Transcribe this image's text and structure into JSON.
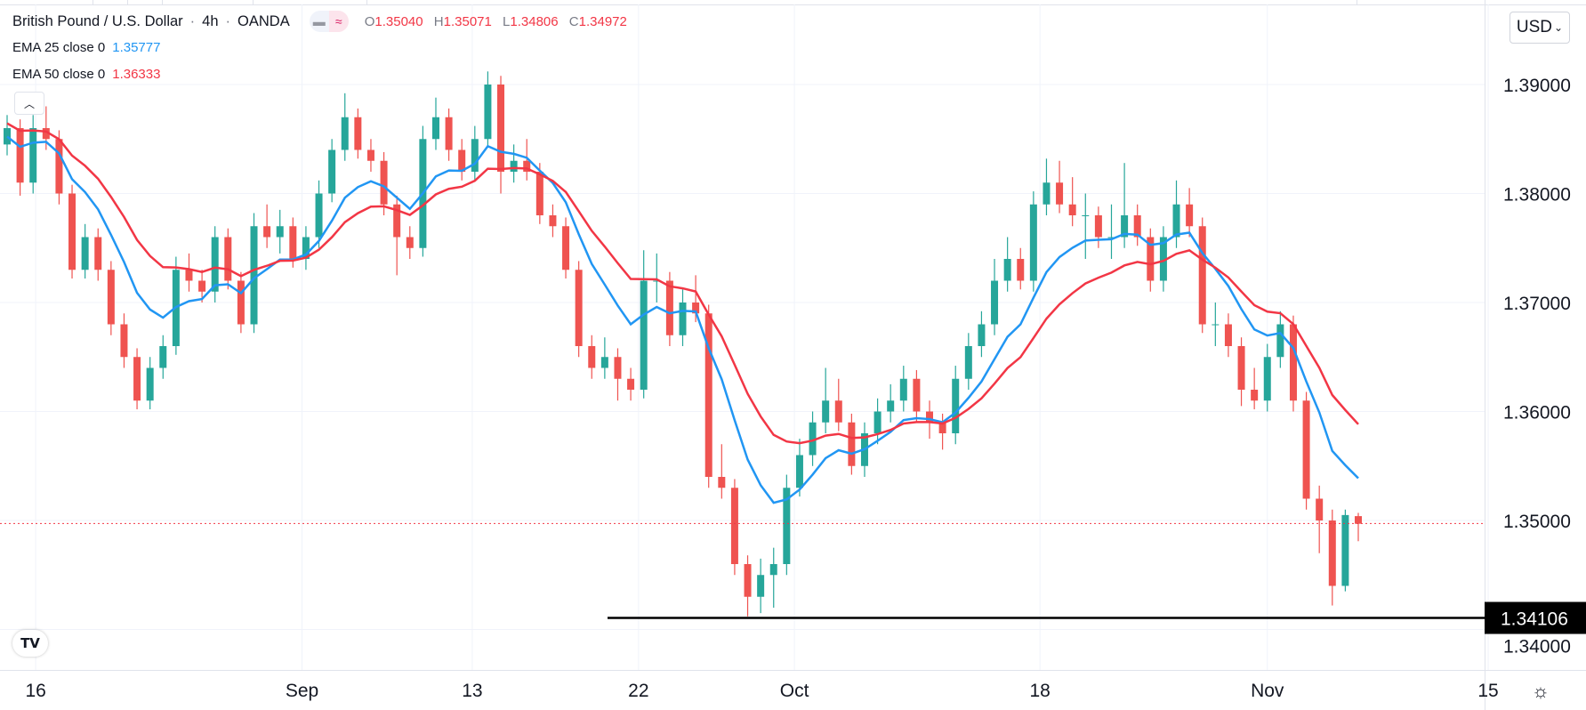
{
  "header": {
    "symbol": "British Pound / U.S. Dollar",
    "interval": "4h",
    "exchange": "OANDA",
    "separator": "·",
    "ohlc": {
      "o_label": "O",
      "o": "1.35040",
      "h_label": "H",
      "h": "1.35071",
      "l_label": "L",
      "l": "1.34806",
      "c_label": "C",
      "c": "1.34972"
    }
  },
  "indicators": [
    {
      "label": "EMA 25 close 0",
      "value": "1.35777",
      "color": "#2196f3"
    },
    {
      "label": "EMA 50 close 0",
      "value": "1.36333",
      "color": "#f23645"
    }
  ],
  "currency_button": "USD",
  "collapse_icon": "chevron-up-icon",
  "logo_text": "TV",
  "colors": {
    "up": "#26a69a",
    "down": "#ef5350",
    "grid": "#f0f3fa",
    "hline": "#000000",
    "last_price": "#f23645"
  },
  "chart_data": {
    "type": "candlestick",
    "title": "British Pound / U.S. Dollar · 4h · OANDA",
    "ylim": [
      1.3345,
      1.3942
    ],
    "y_ticks": [
      "1.39000",
      "1.38000",
      "1.37000",
      "1.36000",
      "1.35000",
      "1.34000"
    ],
    "y_tick_values": [
      1.39,
      1.38,
      1.37,
      1.36,
      1.35,
      1.34
    ],
    "x_ticks": [
      "16",
      "Sep",
      "13",
      "22",
      "Oct",
      "18",
      "Nov",
      "15"
    ],
    "x_tick_bar_index": [
      2.2,
      22.7,
      35.8,
      48.6,
      60.6,
      79.5,
      97,
      114
    ],
    "horizontal_line": {
      "value": 1.34106,
      "label": "1.34106"
    },
    "last_price": 1.34972,
    "ema_periods_display": [
      25,
      50
    ],
    "candles_ohlc": [
      [
        1.3845,
        1.3872,
        1.3835,
        1.386
      ],
      [
        1.386,
        1.3868,
        1.3798,
        1.381
      ],
      [
        1.381,
        1.3872,
        1.38,
        1.386
      ],
      [
        1.386,
        1.388,
        1.384,
        1.385
      ],
      [
        1.385,
        1.3858,
        1.379,
        1.38
      ],
      [
        1.38,
        1.3808,
        1.3722,
        1.373
      ],
      [
        1.373,
        1.3772,
        1.3722,
        1.376
      ],
      [
        1.376,
        1.3768,
        1.372,
        1.373
      ],
      [
        1.373,
        1.3738,
        1.367,
        1.368
      ],
      [
        1.368,
        1.369,
        1.364,
        1.365
      ],
      [
        1.365,
        1.3658,
        1.3602,
        1.361
      ],
      [
        1.361,
        1.365,
        1.3602,
        1.364
      ],
      [
        1.364,
        1.367,
        1.363,
        1.366
      ],
      [
        1.366,
        1.3742,
        1.3652,
        1.373
      ],
      [
        1.373,
        1.3745,
        1.371,
        1.372
      ],
      [
        1.372,
        1.373,
        1.37,
        1.371
      ],
      [
        1.371,
        1.377,
        1.37,
        1.376
      ],
      [
        1.376,
        1.3768,
        1.3712,
        1.372
      ],
      [
        1.372,
        1.3728,
        1.3672,
        1.368
      ],
      [
        1.368,
        1.3782,
        1.3672,
        1.377
      ],
      [
        1.377,
        1.379,
        1.375,
        1.376
      ],
      [
        1.376,
        1.3785,
        1.3745,
        1.377
      ],
      [
        1.377,
        1.3778,
        1.3732,
        1.374
      ],
      [
        1.374,
        1.377,
        1.373,
        1.376
      ],
      [
        1.376,
        1.3812,
        1.375,
        1.38
      ],
      [
        1.38,
        1.385,
        1.3792,
        1.384
      ],
      [
        1.384,
        1.3892,
        1.383,
        1.387
      ],
      [
        1.387,
        1.3878,
        1.3832,
        1.384
      ],
      [
        1.384,
        1.385,
        1.382,
        1.383
      ],
      [
        1.383,
        1.3838,
        1.378,
        1.379
      ],
      [
        1.379,
        1.3798,
        1.3725,
        1.376
      ],
      [
        1.376,
        1.377,
        1.374,
        1.375
      ],
      [
        1.375,
        1.3862,
        1.3742,
        1.385
      ],
      [
        1.385,
        1.3888,
        1.384,
        1.387
      ],
      [
        1.387,
        1.3878,
        1.383,
        1.384
      ],
      [
        1.384,
        1.385,
        1.3812,
        1.382
      ],
      [
        1.382,
        1.3862,
        1.3812,
        1.385
      ],
      [
        1.385,
        1.3912,
        1.3842,
        1.39
      ],
      [
        1.39,
        1.3908,
        1.38,
        1.382
      ],
      [
        1.382,
        1.3845,
        1.381,
        1.383
      ],
      [
        1.383,
        1.385,
        1.3812,
        1.382
      ],
      [
        1.382,
        1.3828,
        1.3772,
        1.378
      ],
      [
        1.378,
        1.379,
        1.376,
        1.377
      ],
      [
        1.377,
        1.3778,
        1.3722,
        1.373
      ],
      [
        1.373,
        1.3738,
        1.365,
        1.366
      ],
      [
        1.366,
        1.367,
        1.363,
        1.364
      ],
      [
        1.364,
        1.3668,
        1.363,
        1.365
      ],
      [
        1.365,
        1.3658,
        1.361,
        1.363
      ],
      [
        1.363,
        1.364,
        1.361,
        1.362
      ],
      [
        1.362,
        1.3748,
        1.3612,
        1.372
      ],
      [
        1.372,
        1.3745,
        1.37,
        1.372
      ],
      [
        1.372,
        1.3728,
        1.366,
        1.367
      ],
      [
        1.367,
        1.3712,
        1.366,
        1.37
      ],
      [
        1.37,
        1.3725,
        1.3682,
        1.369
      ],
      [
        1.369,
        1.3698,
        1.353,
        1.354
      ],
      [
        1.354,
        1.357,
        1.352,
        1.353
      ],
      [
        1.353,
        1.3538,
        1.345,
        1.346
      ],
      [
        1.346,
        1.3468,
        1.3412,
        1.343
      ],
      [
        1.343,
        1.3465,
        1.3415,
        1.345
      ],
      [
        1.345,
        1.3475,
        1.342,
        1.346
      ],
      [
        1.346,
        1.3542,
        1.345,
        1.353
      ],
      [
        1.353,
        1.3575,
        1.3522,
        1.356
      ],
      [
        1.356,
        1.36,
        1.355,
        1.359
      ],
      [
        1.359,
        1.364,
        1.358,
        1.361
      ],
      [
        1.361,
        1.363,
        1.3582,
        1.359
      ],
      [
        1.359,
        1.3598,
        1.3542,
        1.355
      ],
      [
        1.355,
        1.359,
        1.354,
        1.358
      ],
      [
        1.358,
        1.3612,
        1.357,
        1.36
      ],
      [
        1.36,
        1.3625,
        1.359,
        1.361
      ],
      [
        1.361,
        1.3642,
        1.36,
        1.363
      ],
      [
        1.363,
        1.3638,
        1.359,
        1.36
      ],
      [
        1.36,
        1.361,
        1.3575,
        1.359
      ],
      [
        1.359,
        1.3598,
        1.3565,
        1.358
      ],
      [
        1.358,
        1.3642,
        1.357,
        1.363
      ],
      [
        1.363,
        1.3672,
        1.362,
        1.366
      ],
      [
        1.366,
        1.3692,
        1.365,
        1.368
      ],
      [
        1.368,
        1.374,
        1.367,
        1.372
      ],
      [
        1.372,
        1.376,
        1.371,
        1.374
      ],
      [
        1.374,
        1.375,
        1.3712,
        1.372
      ],
      [
        1.372,
        1.3802,
        1.371,
        1.379
      ],
      [
        1.379,
        1.3832,
        1.378,
        1.381
      ],
      [
        1.381,
        1.383,
        1.3782,
        1.379
      ],
      [
        1.379,
        1.3815,
        1.377,
        1.378
      ],
      [
        1.378,
        1.38,
        1.374,
        1.378
      ],
      [
        1.378,
        1.3788,
        1.375,
        1.376
      ],
      [
        1.376,
        1.379,
        1.374,
        1.376
      ],
      [
        1.376,
        1.3828,
        1.375,
        1.378
      ],
      [
        1.378,
        1.379,
        1.3752,
        1.376
      ],
      [
        1.376,
        1.3768,
        1.371,
        1.372
      ],
      [
        1.372,
        1.377,
        1.371,
        1.376
      ],
      [
        1.376,
        1.3812,
        1.375,
        1.379
      ],
      [
        1.379,
        1.3805,
        1.376,
        1.377
      ],
      [
        1.377,
        1.3778,
        1.3672,
        1.368
      ],
      [
        1.368,
        1.37,
        1.366,
        1.368
      ],
      [
        1.368,
        1.369,
        1.365,
        1.366
      ],
      [
        1.366,
        1.3668,
        1.3605,
        1.362
      ],
      [
        1.362,
        1.364,
        1.3602,
        1.361
      ],
      [
        1.361,
        1.3662,
        1.36,
        1.365
      ],
      [
        1.365,
        1.3692,
        1.364,
        1.368
      ],
      [
        1.368,
        1.3688,
        1.36,
        1.361
      ],
      [
        1.361,
        1.3618,
        1.351,
        1.352
      ],
      [
        1.352,
        1.3532,
        1.347,
        1.35
      ],
      [
        1.35,
        1.351,
        1.3422,
        1.344
      ],
      [
        1.344,
        1.351,
        1.3435,
        1.3505
      ],
      [
        1.3504,
        1.3507,
        1.3481,
        1.3497
      ]
    ]
  }
}
